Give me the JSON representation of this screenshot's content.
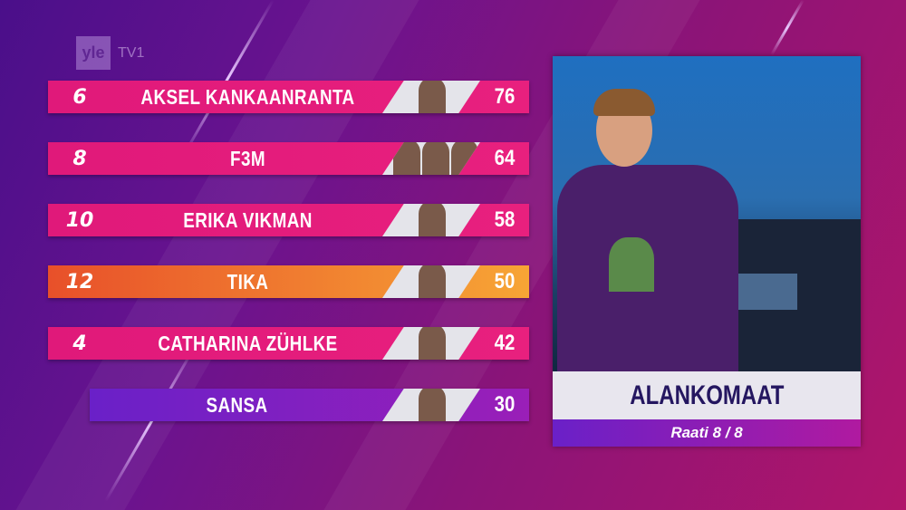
{
  "broadcaster": {
    "logo": "yle",
    "channel": "TV1"
  },
  "scoreboard": [
    {
      "points": "6",
      "name": "AKSEL KANKAANRANTA",
      "score": "76",
      "members": 1
    },
    {
      "points": "8",
      "name": "F3M",
      "score": "64",
      "members": 3
    },
    {
      "points": "10",
      "name": "ERIKA VIKMAN",
      "score": "58",
      "members": 1
    },
    {
      "points": "12",
      "name": "TIKA",
      "score": "50",
      "members": 1,
      "highlight": true
    },
    {
      "points": "4",
      "name": "CATHARINA ZÜHLKE",
      "score": "42",
      "members": 1
    },
    {
      "points": "",
      "name": "SANSA",
      "score": "30",
      "members": 1
    }
  ],
  "jury_panel": {
    "country": "ALANKOMAAT",
    "progress": "Raati 8 / 8"
  },
  "colors": {
    "row": "#e0197a",
    "top_row": "#f0782e",
    "last_row": "#7a20c0",
    "country_text": "#241660"
  }
}
